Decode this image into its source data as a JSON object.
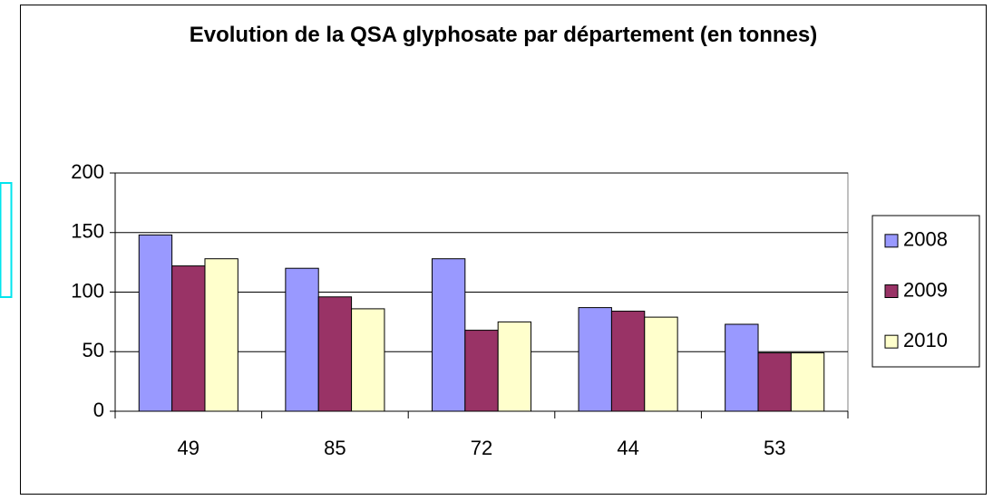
{
  "chart_data": {
    "type": "bar",
    "title": "Evolution de la QSA glyphosate par département (en tonnes)",
    "categories": [
      "49",
      "85",
      "72",
      "44",
      "53"
    ],
    "series": [
      {
        "name": "2008",
        "color": "#9999ff",
        "values": [
          148,
          120,
          128,
          87,
          73
        ]
      },
      {
        "name": "2009",
        "color": "#993366",
        "values": [
          122,
          96,
          68,
          84,
          49
        ]
      },
      {
        "name": "2010",
        "color": "#ffffcc",
        "values": [
          128,
          86,
          75,
          79,
          49
        ]
      }
    ],
    "ylim": [
      0,
      200
    ],
    "yticks": [
      0,
      50,
      100,
      150,
      200
    ],
    "grid": true,
    "legend": "right"
  }
}
